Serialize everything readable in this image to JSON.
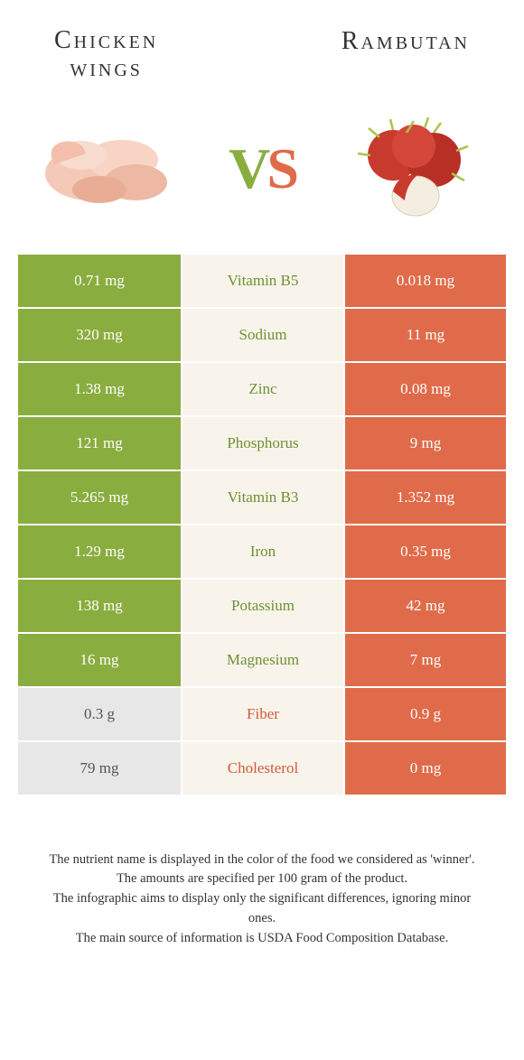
{
  "header": {
    "left_title_line1": "Chicken",
    "left_title_line2": "wings",
    "right_title": "Rambutan"
  },
  "vs": {
    "v": "V",
    "s": "S"
  },
  "colors": {
    "green": "#8aad3f",
    "orange": "#e06b4a",
    "grey": "#e7e7e7",
    "mid_bg": "#f8f4ec",
    "mid_green_text": "#6f9030",
    "mid_orange_text": "#d15a38"
  },
  "rows": [
    {
      "left": "0.71 mg",
      "name": "Vitamin B5",
      "right": "0.018 mg",
      "winner": "left"
    },
    {
      "left": "320 mg",
      "name": "Sodium",
      "right": "11 mg",
      "winner": "left"
    },
    {
      "left": "1.38 mg",
      "name": "Zinc",
      "right": "0.08 mg",
      "winner": "left"
    },
    {
      "left": "121 mg",
      "name": "Phosphorus",
      "right": "9 mg",
      "winner": "left"
    },
    {
      "left": "5.265 mg",
      "name": "Vitamin B3",
      "right": "1.352 mg",
      "winner": "left"
    },
    {
      "left": "1.29 mg",
      "name": "Iron",
      "right": "0.35 mg",
      "winner": "left"
    },
    {
      "left": "138 mg",
      "name": "Potassium",
      "right": "42 mg",
      "winner": "left"
    },
    {
      "left": "16 mg",
      "name": "Magnesium",
      "right": "7 mg",
      "winner": "left"
    },
    {
      "left": "0.3 g",
      "name": "Fiber",
      "right": "0.9 g",
      "winner": "right"
    },
    {
      "left": "79 mg",
      "name": "Cholesterol",
      "right": "0 mg",
      "winner": "right"
    }
  ],
  "footer": {
    "line1": "The nutrient name is displayed in the color of the food we considered as 'winner'.",
    "line2": "The amounts are specified per 100 gram of the product.",
    "line3": "The infographic aims to display only the significant differences, ignoring minor ones.",
    "line4": "The main source of information is USDA Food Composition Database."
  }
}
